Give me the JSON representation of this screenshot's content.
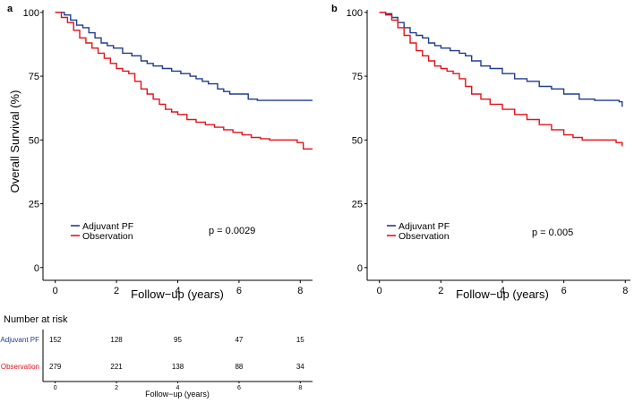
{
  "colors": {
    "adjuvant": "#1f3d8f",
    "observation": "#e3121a",
    "axis": "#000000"
  },
  "chart_data": [
    {
      "type": "line",
      "panel_label": "a",
      "title": "",
      "xlabel": "Follow−up (years)",
      "ylabel": "Overall Survival (%)",
      "xlim": [
        -0.4,
        8.4
      ],
      "ylim": [
        -5,
        101
      ],
      "xticks": [
        "0",
        "2",
        "4",
        "6",
        "8"
      ],
      "yticks": [
        "0",
        "25",
        "50",
        "75",
        "100"
      ],
      "legend_position": "bottom-left",
      "annotation": "p = 0.0029",
      "series": [
        {
          "name": "Adjuvant PF",
          "color": "#1f3d8f",
          "x": [
            0,
            0.3,
            0.5,
            0.7,
            0.9,
            1.1,
            1.3,
            1.5,
            1.7,
            1.9,
            2.2,
            2.5,
            2.8,
            3.0,
            3.2,
            3.5,
            3.8,
            4.1,
            4.4,
            4.6,
            4.8,
            5.0,
            5.3,
            5.5,
            5.7,
            6.0,
            6.3,
            6.6,
            7.0,
            7.5,
            8.0,
            8.4
          ],
          "y": [
            100,
            99,
            97,
            95,
            94,
            92,
            90,
            88,
            87,
            86,
            84,
            83,
            81,
            80,
            79,
            78,
            77,
            76,
            75,
            74,
            73,
            72,
            70,
            69,
            68,
            68,
            66,
            65.5,
            65.5,
            65.5,
            65.5,
            65.5
          ]
        },
        {
          "name": "Observation",
          "color": "#e3121a",
          "x": [
            0,
            0.2,
            0.4,
            0.6,
            0.8,
            1.0,
            1.2,
            1.4,
            1.6,
            1.8,
            2.0,
            2.2,
            2.4,
            2.6,
            2.8,
            3.0,
            3.2,
            3.4,
            3.6,
            3.8,
            4.0,
            4.3,
            4.6,
            4.9,
            5.2,
            5.5,
            5.8,
            6.1,
            6.4,
            6.7,
            7.0,
            7.5,
            7.9,
            8.1,
            8.4
          ],
          "y": [
            100,
            98,
            96,
            93,
            90,
            88,
            86,
            84,
            82,
            80,
            78,
            77,
            76,
            73,
            70,
            68,
            66,
            64,
            62,
            61,
            60,
            58,
            57,
            56,
            55,
            54,
            53,
            52,
            51,
            50.5,
            50,
            50,
            49,
            46.5,
            46.5
          ]
        }
      ]
    },
    {
      "type": "line",
      "panel_label": "b",
      "title": "",
      "xlabel": "Follow−up (years)",
      "ylabel": "",
      "xlim": [
        -0.4,
        8.4
      ],
      "ylim": [
        -5,
        101
      ],
      "xticks": [
        "0",
        "2",
        "4",
        "6",
        "8"
      ],
      "yticks": [
        "0",
        "25",
        "50",
        "75",
        "100"
      ],
      "legend_position": "bottom-left",
      "annotation": "p = 0.005",
      "series": [
        {
          "name": "Adjuvant PF",
          "color": "#1f3d8f",
          "x": [
            0,
            0.2,
            0.4,
            0.6,
            0.8,
            1.0,
            1.2,
            1.4,
            1.6,
            1.8,
            2.0,
            2.3,
            2.6,
            2.8,
            3.0,
            3.3,
            3.6,
            4.0,
            4.4,
            4.8,
            5.2,
            5.6,
            6.0,
            6.5,
            7.0,
            7.5,
            7.8,
            7.9
          ],
          "y": [
            100,
            99.5,
            98,
            96,
            94,
            92,
            91,
            90,
            88,
            87,
            86,
            85,
            84,
            83,
            81,
            79,
            78,
            76,
            74,
            73,
            71,
            70,
            68,
            66,
            65.5,
            65.5,
            65,
            63
          ]
        },
        {
          "name": "Observation",
          "color": "#e3121a",
          "x": [
            0,
            0.2,
            0.4,
            0.6,
            0.8,
            1.0,
            1.2,
            1.4,
            1.6,
            1.8,
            2.0,
            2.2,
            2.4,
            2.6,
            2.8,
            3.0,
            3.3,
            3.6,
            4.0,
            4.4,
            4.8,
            5.2,
            5.6,
            6.0,
            6.3,
            6.6,
            7.0,
            7.4,
            7.7,
            7.9
          ],
          "y": [
            100,
            99,
            97,
            94,
            91,
            88,
            85,
            83,
            81,
            79,
            78,
            77,
            76,
            74,
            71,
            68,
            66,
            64,
            62,
            60,
            58,
            56,
            54,
            52,
            51,
            50,
            50,
            50,
            49,
            47.5
          ]
        }
      ]
    },
    {
      "type": "table",
      "title": "Number at risk",
      "xlabel": "Follow−up (years)",
      "xlim": [
        -0.4,
        8.4
      ],
      "x": [
        0,
        2,
        4,
        6,
        8
      ],
      "xticks": [
        "0",
        "2",
        "4",
        "6",
        "8"
      ],
      "rows": [
        {
          "name": "Adjuvant PF",
          "color": "#1f3d8f",
          "values": [
            "152",
            "128",
            "95",
            "47",
            "15"
          ]
        },
        {
          "name": "Observation",
          "color": "#e3121a",
          "values": [
            "279",
            "221",
            "138",
            "88",
            "34"
          ]
        }
      ]
    }
  ]
}
